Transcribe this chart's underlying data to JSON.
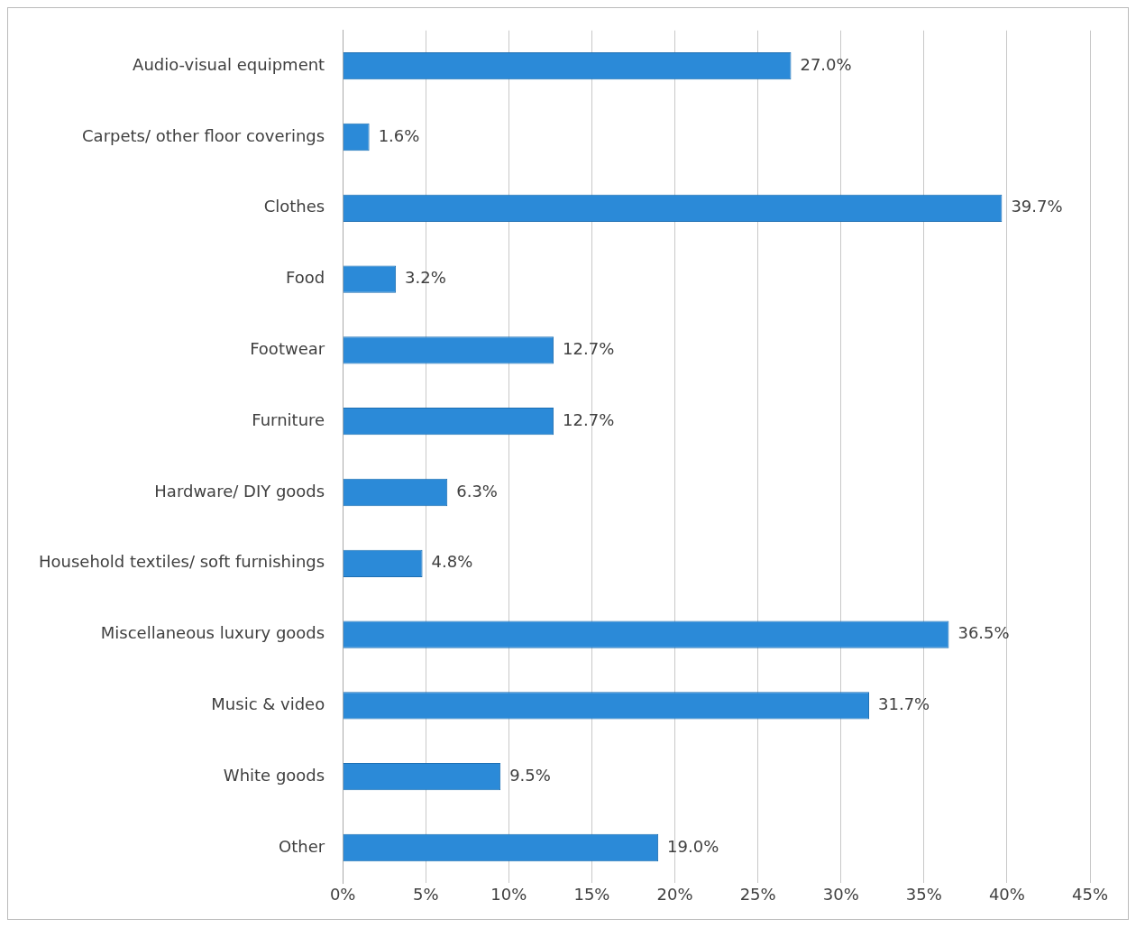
{
  "chart_data": {
    "type": "bar",
    "orientation": "horizontal",
    "categories": [
      "Audio-visual equipment",
      "Carpets/ other floor coverings",
      "Clothes",
      "Food",
      "Footwear",
      "Furniture",
      "Hardware/ DIY goods",
      "Household textiles/ soft furnishings",
      "Miscellaneous luxury goods",
      "Music & video",
      "White goods",
      "Other"
    ],
    "values": [
      27.0,
      1.6,
      39.7,
      3.2,
      12.7,
      12.7,
      6.3,
      4.8,
      36.5,
      31.7,
      9.5,
      19.0
    ],
    "value_labels": [
      "27.0%",
      "1.6%",
      "39.7%",
      "3.2%",
      "12.7%",
      "12.7%",
      "6.3%",
      "4.8%",
      "36.5%",
      "31.7%",
      "9.5%",
      "19.0%"
    ],
    "color": "#2b8ad8",
    "xlim": [
      0,
      45
    ],
    "xticks": [
      {
        "value": 0,
        "label": "0%"
      },
      {
        "value": 5,
        "label": "5%"
      },
      {
        "value": 10,
        "label": "10%"
      },
      {
        "value": 15,
        "label": "15%"
      },
      {
        "value": 20,
        "label": "20%"
      },
      {
        "value": 25,
        "label": "25%"
      },
      {
        "value": 30,
        "label": "30%"
      },
      {
        "value": 35,
        "label": "35%"
      },
      {
        "value": 40,
        "label": "40%"
      },
      {
        "value": 45,
        "label": "45%"
      }
    ],
    "grid": "x",
    "legend": false
  }
}
